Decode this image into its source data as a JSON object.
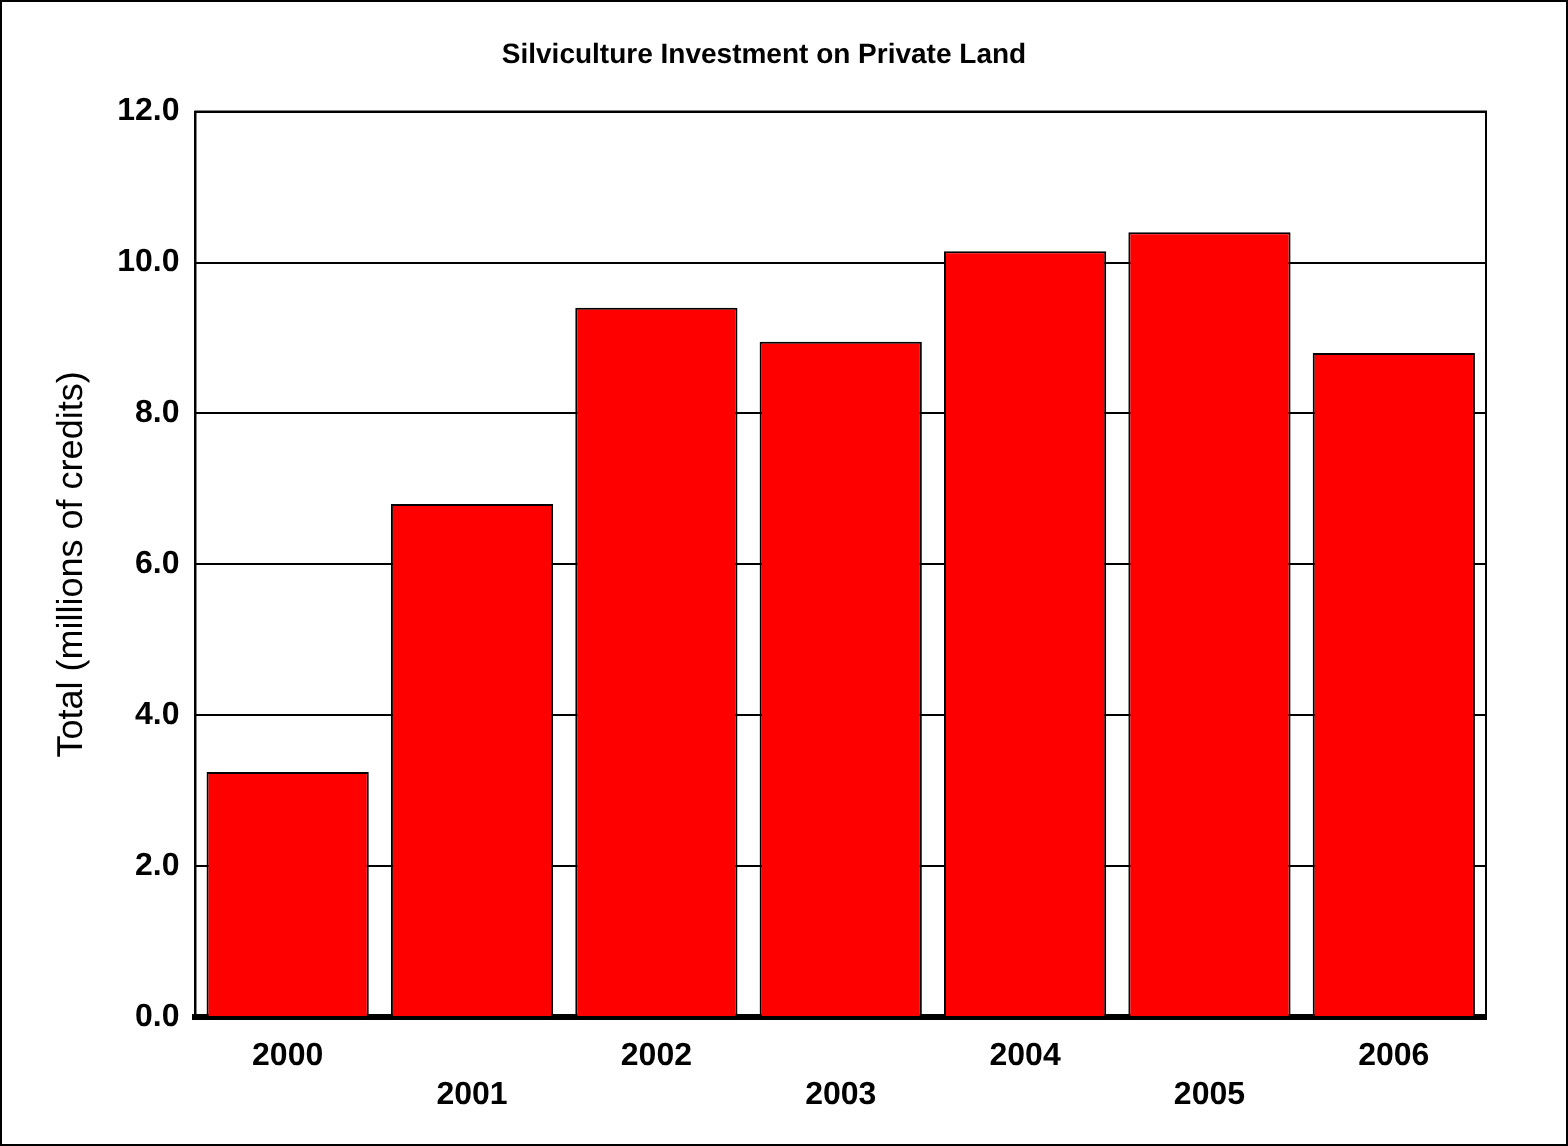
{
  "chart_data": {
    "type": "bar",
    "title": "Silviculture Investment on Private Land",
    "ylabel": "Total (millions of credits)",
    "categories": [
      "2000",
      "2001",
      "2002",
      "2003",
      "2004",
      "2005",
      "2006"
    ],
    "values": [
      3.25,
      6.8,
      9.4,
      8.95,
      10.15,
      10.4,
      8.8
    ],
    "color": "#ff0000",
    "ylim": [
      0,
      12
    ],
    "yticks": [
      {
        "value": 0,
        "label": "0.0"
      },
      {
        "value": 2,
        "label": "2.0"
      },
      {
        "value": 4,
        "label": "4.0"
      },
      {
        "value": 6,
        "label": "6.0"
      },
      {
        "value": 8,
        "label": "8.0"
      },
      {
        "value": 10,
        "label": "10.0"
      },
      {
        "value": 12,
        "label": "12.0"
      }
    ],
    "grid": "y",
    "legend": false
  }
}
